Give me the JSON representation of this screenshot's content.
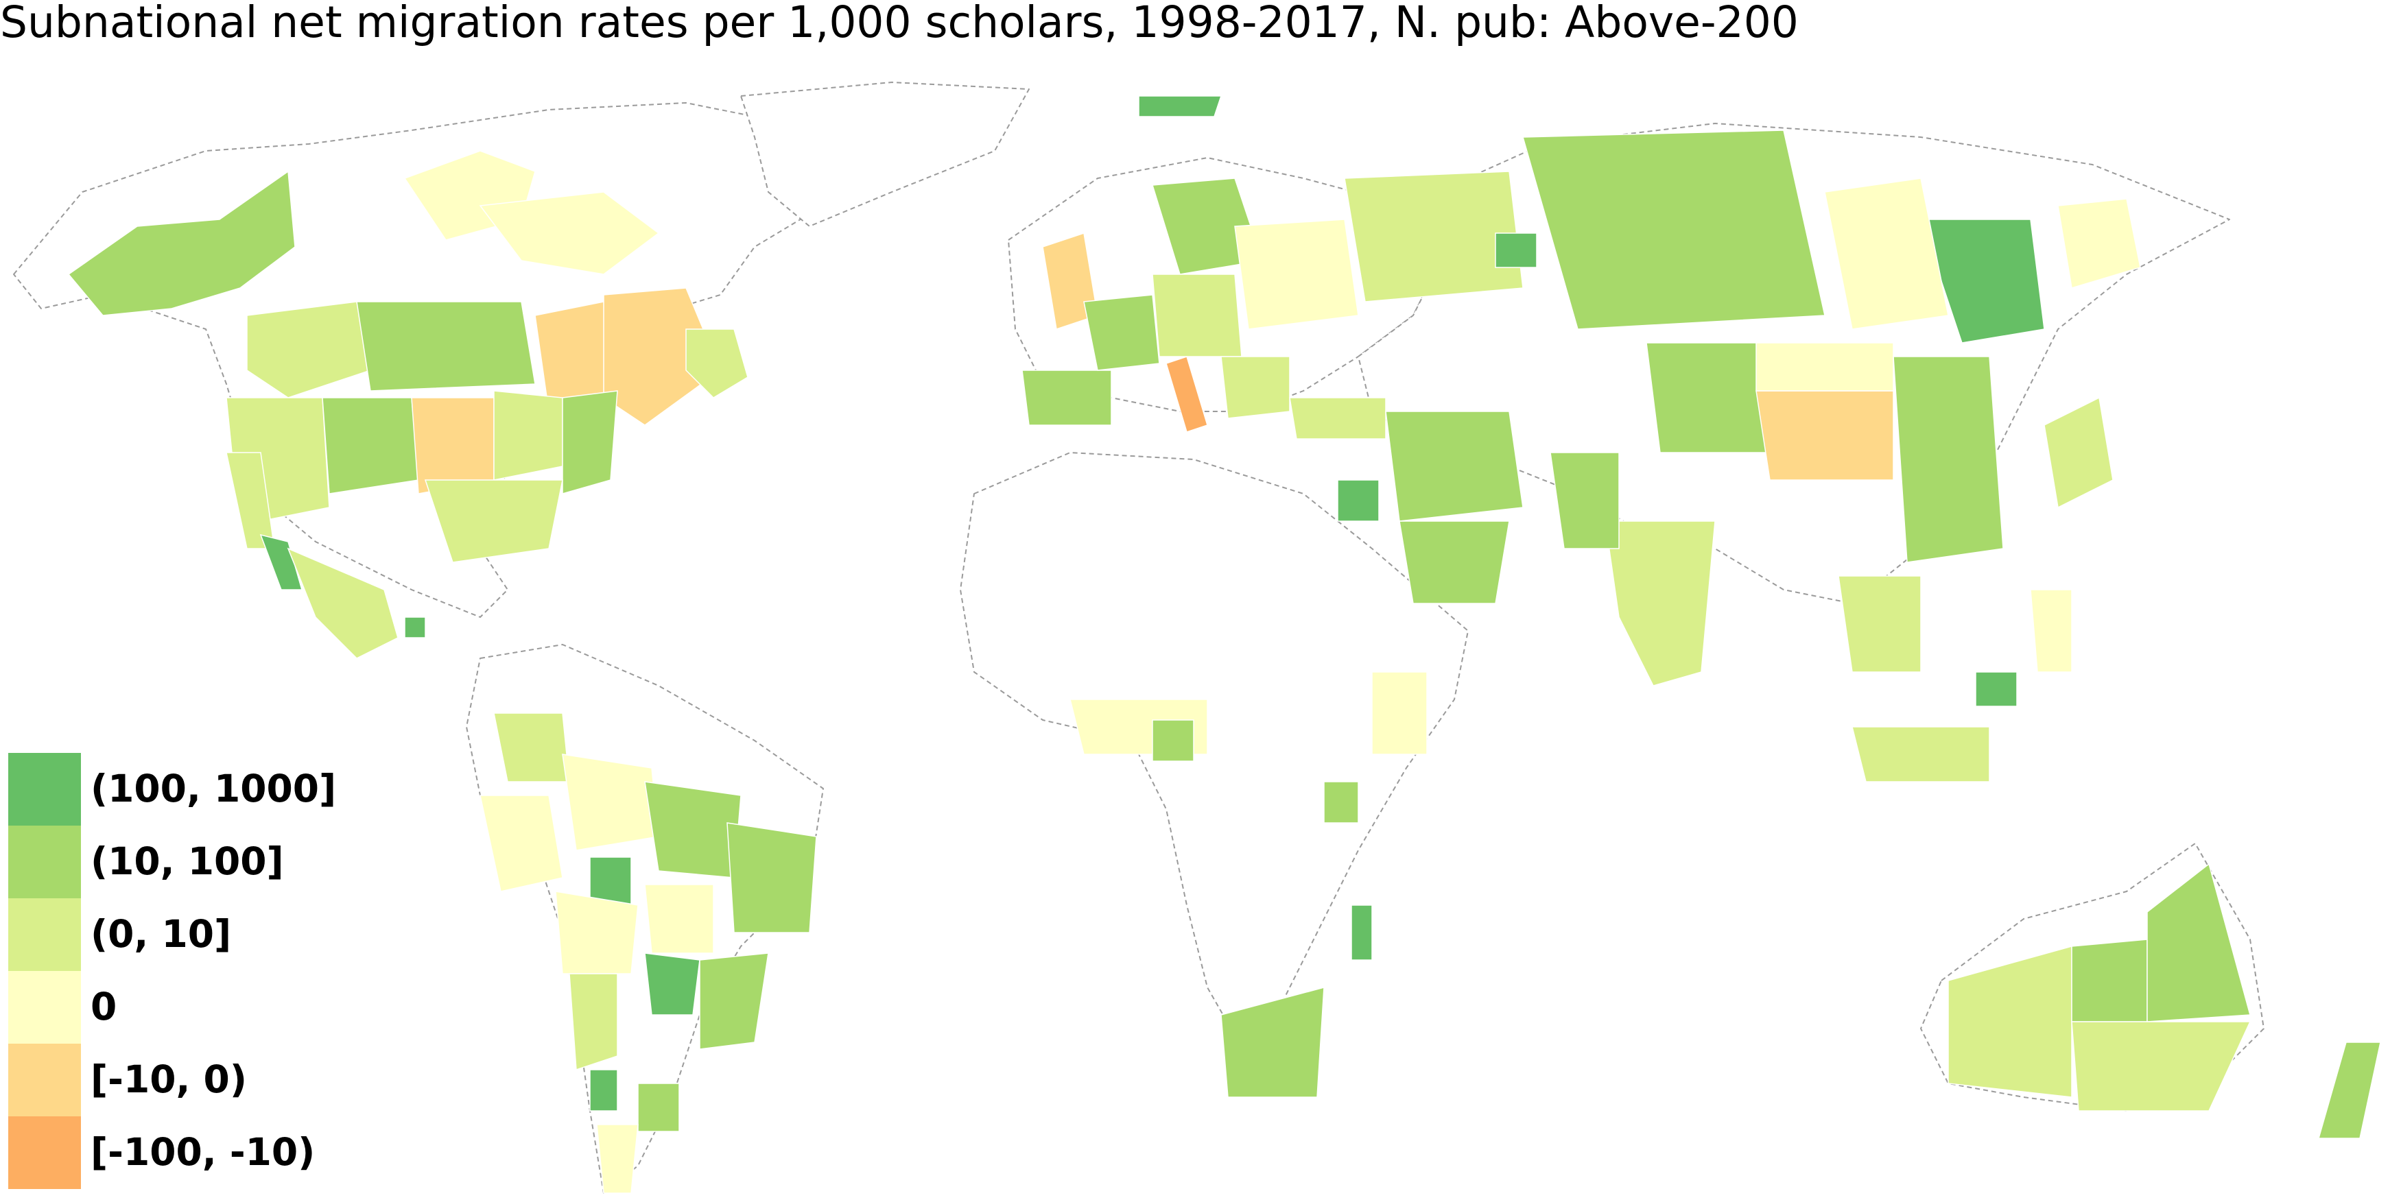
{
  "title": "Subnational net migration rates per 1,000 scholars, 1998-2017, N. pub: Above-200",
  "legend": [
    {
      "label": "(100, 1000]",
      "color": "#66bf65"
    },
    {
      "label": "(10, 100]",
      "color": "#a7d96a"
    },
    {
      "label": "(0, 10]",
      "color": "#d9ef8b"
    },
    {
      "label": "0",
      "color": "#ffffc4"
    },
    {
      "label": "[-10, 0)",
      "color": "#fed889"
    },
    {
      "label": "[-100, -10)",
      "color": "#fdae61"
    }
  ],
  "colors": {
    "no_data": "#ffffff",
    "border": "#9a9a9a"
  }
}
